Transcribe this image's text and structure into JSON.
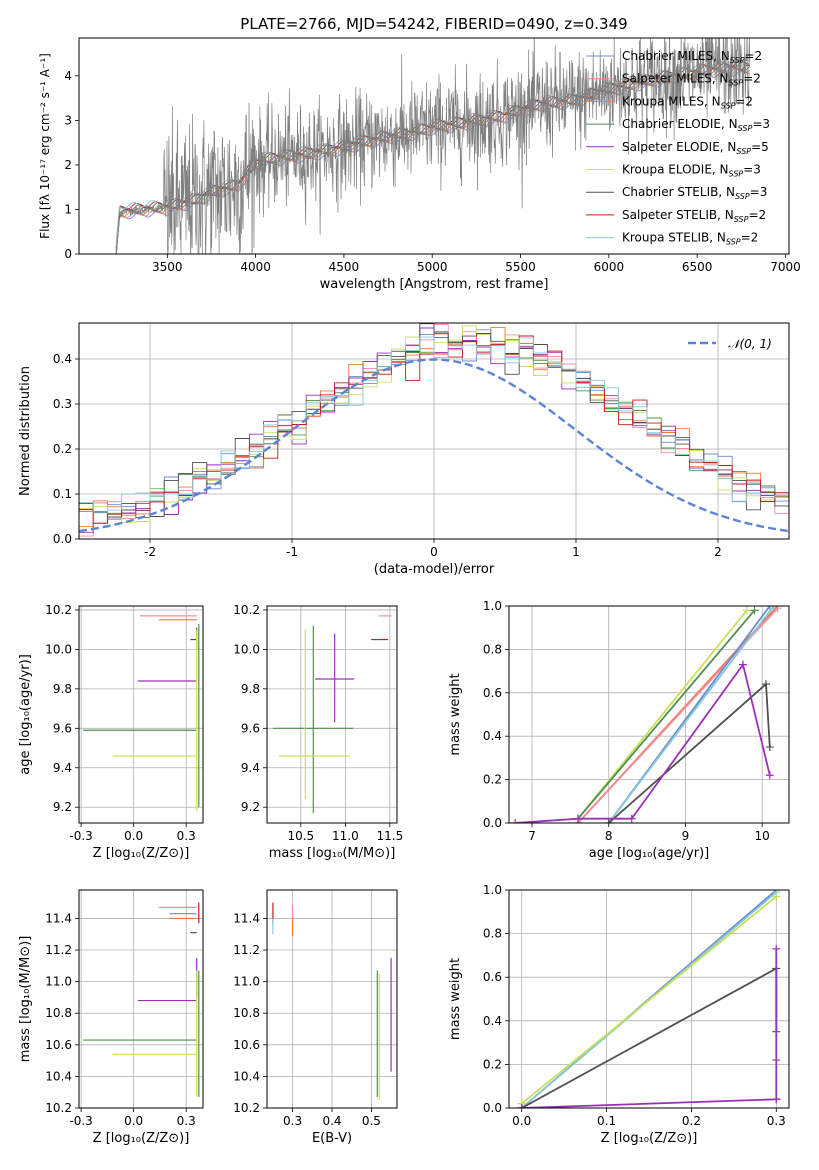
{
  "figure_title": "PLATE=2766, MJD=54242, FIBERID=0490, z=0.349",
  "colors": {
    "Chabrier MILES": "#6b8cd6",
    "Salpeter MILES": "#f08ca0",
    "Kroupa MILES": "#f07838",
    "Chabrier ELODIE": "#4f8f4f",
    "Salpeter ELODIE": "#9b30b8",
    "Kroupa ELODIE": "#c8e05a",
    "Chabrier STELIB": "#505050",
    "Salpeter STELIB": "#c81818",
    "Kroupa STELIB": "#86c8d8",
    "data": "#808080",
    "normal": "#5b85d4"
  },
  "legend_spectrum": [
    {
      "name": "Chabrier MILES",
      "nssp": "2"
    },
    {
      "name": "Salpeter MILES",
      "nssp": "2"
    },
    {
      "name": "Kroupa MILES",
      "nssp": "2"
    },
    {
      "name": "Chabrier ELODIE",
      "nssp": "3"
    },
    {
      "name": "Salpeter ELODIE",
      "nssp": "5"
    },
    {
      "name": "Kroupa ELODIE",
      "nssp": "3"
    },
    {
      "name": "Chabrier STELIB",
      "nssp": "3"
    },
    {
      "name": "Salpeter STELIB",
      "nssp": "2"
    },
    {
      "name": "Kroupa STELIB",
      "nssp": "2"
    }
  ],
  "chart_data": [
    {
      "id": "spectrum",
      "type": "line",
      "xlabel": "wavelength [Angstrom, rest frame]",
      "ylabel": "Flux [fλ 10⁻¹⁷ erg cm⁻² s⁻¹ A⁻¹]",
      "xlim": [
        3000,
        7020
      ],
      "ylim": [
        0,
        4.85
      ],
      "xticks": [
        3500,
        4000,
        4500,
        5000,
        5500,
        6000,
        6500,
        7000
      ],
      "yticks": [
        0,
        1,
        2,
        3,
        4
      ],
      "grid": false,
      "legend": "upper right",
      "data_start": 3210,
      "model_continuum": [
        [
          3210,
          0
        ],
        [
          3230,
          0.95
        ],
        [
          3500,
          1.05
        ],
        [
          3650,
          1.2
        ],
        [
          3760,
          1.4
        ],
        [
          3900,
          1.55
        ],
        [
          4000,
          2.05
        ],
        [
          4100,
          2.15
        ],
        [
          4300,
          2.25
        ],
        [
          4500,
          2.4
        ],
        [
          4700,
          2.6
        ],
        [
          4860,
          2.7
        ],
        [
          5000,
          2.85
        ],
        [
          5200,
          2.95
        ],
        [
          5400,
          3.1
        ],
        [
          5600,
          3.35
        ],
        [
          5800,
          3.45
        ],
        [
          6000,
          3.7
        ],
        [
          6300,
          3.95
        ],
        [
          6600,
          4.15
        ],
        [
          6800,
          4.2
        ]
      ]
    },
    {
      "id": "residuals",
      "type": "step",
      "xlabel": "(data-model)/error",
      "ylabel": "Normed distribution",
      "xlim": [
        -2.5,
        2.5
      ],
      "ylim": [
        0,
        0.48
      ],
      "xticks": [
        -2,
        -1,
        0,
        1,
        2
      ],
      "yticks": [
        0.0,
        0.1,
        0.2,
        0.3,
        0.4
      ],
      "grid": true,
      "legend": "upper right",
      "overlay": {
        "name": "𝒩(0, 1)",
        "mean": 0,
        "sigma": 1
      },
      "bin_width": 0.1
    },
    {
      "id": "z_age",
      "type": "errorbar",
      "xlabel": "Z [log₁₀(Z/Z⊙)]",
      "ylabel": "age  [log₁₀(age/yr)]",
      "xlim": [
        -0.26,
        0.33
      ],
      "ylim": [
        9.12,
        10.22
      ],
      "xticks": [
        -0.25,
        0.0,
        0.25
      ],
      "yticks": [
        9.2,
        9.4,
        9.6,
        9.8,
        10.0,
        10.2
      ],
      "grid": true,
      "points": [
        {
          "series": "Salpeter MILES",
          "x": 0.13,
          "y": 10.17,
          "xerr": [
            0.1,
            0.17
          ],
          "yerr": [
            0.0,
            0.0
          ]
        },
        {
          "series": "Kroupa MILES",
          "x": 0.22,
          "y": 10.15,
          "xerr": [
            0.1,
            0.08
          ],
          "yerr": [
            0.0,
            0.0
          ]
        },
        {
          "series": "Chabrier STELIB",
          "x": 0.3,
          "y": 10.05,
          "xerr": [
            0.03,
            0.0
          ],
          "yerr": [
            0.05,
            0.06
          ]
        },
        {
          "series": "Salpeter ELODIE",
          "x": 0.15,
          "y": 9.84,
          "xerr": [
            0.13,
            0.15
          ],
          "yerr": [
            0.0,
            0.0
          ]
        },
        {
          "series": "Chabrier ELODIE",
          "x": 0.03,
          "y": 9.59,
          "xerr": [
            0.27,
            0.27
          ],
          "yerr": [
            0.0,
            0.0
          ]
        },
        {
          "series": "Kroupa ELODIE",
          "x": 0.1,
          "y": 9.46,
          "xerr": [
            0.2,
            0.2
          ],
          "yerr": [
            0.0,
            0.0
          ]
        },
        {
          "series": "Kroupa ELODIE",
          "x": 0.3,
          "y": 9.6,
          "xerr": [
            0.0,
            0.0
          ],
          "yerr": [
            0.42,
            0.5
          ]
        },
        {
          "series": "Chabrier ELODIE",
          "x": 0.31,
          "y": 9.7,
          "xerr": [
            0.0,
            0.0
          ],
          "yerr": [
            0.5,
            0.43
          ]
        }
      ]
    },
    {
      "id": "mass_age",
      "type": "errorbar",
      "xlabel": "mass [log₁₀(M/M⊙)]",
      "ylabel": "",
      "xlim": [
        10.12,
        11.58
      ],
      "ylim": [
        9.12,
        10.22
      ],
      "xticks": [
        10.5,
        11.0,
        11.5
      ],
      "yticks": [
        9.2,
        9.4,
        9.6,
        9.8,
        10.0,
        10.2
      ],
      "grid": true,
      "points": [
        {
          "series": "Salpeter MILES",
          "x": 11.45,
          "y": 10.17,
          "xerr": [
            0.07,
            0.07
          ],
          "yerr": [
            0.0,
            0.0
          ]
        },
        {
          "series": "Salpeter STELIB",
          "x": 11.42,
          "y": 10.05,
          "xerr": [
            0.04,
            0.06
          ],
          "yerr": [
            0.0,
            0.0
          ]
        },
        {
          "series": "Chabrier STELIB",
          "x": 11.35,
          "y": 10.05,
          "xerr": [
            0.06,
            0.03
          ],
          "yerr": [
            0.0,
            0.0
          ]
        },
        {
          "series": "Salpeter ELODIE",
          "x": 10.88,
          "y": 9.85,
          "xerr": [
            0.22,
            0.22
          ],
          "yerr": [
            0.22,
            0.23
          ]
        },
        {
          "series": "Chabrier ELODIE",
          "x": 10.64,
          "y": 9.6,
          "xerr": [
            0.45,
            0.45
          ],
          "yerr": [
            0.43,
            0.52
          ]
        },
        {
          "series": "Kroupa ELODIE",
          "x": 10.55,
          "y": 9.46,
          "xerr": [
            0.3,
            0.5
          ],
          "yerr": [
            0.22,
            0.64
          ]
        }
      ]
    },
    {
      "id": "age_weight",
      "type": "line",
      "xlabel": "age  [log₁₀(age/yr)]",
      "ylabel": "mass weight",
      "xlim": [
        6.7,
        10.35
      ],
      "ylim": [
        0,
        1
      ],
      "xticks": [
        7,
        8,
        9,
        10
      ],
      "yticks": [
        0.0,
        0.2,
        0.4,
        0.6,
        0.8,
        1.0
      ],
      "grid": true,
      "series": [
        {
          "name": "Kroupa ELODIE",
          "x": [
            7.6,
            9.8
          ],
          "y": [
            0.02,
            0.98
          ]
        },
        {
          "name": "Chabrier ELODIE",
          "x": [
            7.6,
            9.9
          ],
          "y": [
            0.02,
            0.98
          ]
        },
        {
          "name": "Kroupa MILES",
          "x": [
            7.6,
            10.2
          ],
          "y": [
            0.0,
            1.0
          ]
        },
        {
          "name": "Salpeter MILES",
          "x": [
            7.6,
            10.2
          ],
          "y": [
            0.0,
            0.99
          ]
        },
        {
          "name": "Chabrier MILES",
          "x": [
            8.0,
            10.1
          ],
          "y": [
            0.0,
            1.0
          ]
        },
        {
          "name": "Kroupa STELIB",
          "x": [
            8.0,
            10.15
          ],
          "y": [
            0.0,
            1.0
          ]
        },
        {
          "name": "Chabrier STELIB",
          "x": [
            8.0,
            10.05,
            10.1
          ],
          "y": [
            0.0,
            0.64,
            0.35
          ]
        },
        {
          "name": "Salpeter ELODIE",
          "x": [
            6.78,
            7.6,
            8.3,
            9.75,
            10.1
          ],
          "y": [
            0.0,
            0.02,
            0.02,
            0.73,
            0.22
          ]
        }
      ]
    },
    {
      "id": "z_mass",
      "type": "errorbar",
      "xlabel": "Z [log₁₀(Z/Z⊙)]",
      "ylabel": "mass [log₁₀(M/M⊙)]",
      "xlim": [
        -0.26,
        0.33
      ],
      "ylim": [
        10.2,
        11.58
      ],
      "xticks": [
        -0.25,
        0.0,
        0.25
      ],
      "yticks": [
        10.2,
        10.4,
        10.6,
        10.8,
        11.0,
        11.2,
        11.4
      ],
      "grid": true,
      "points": [
        {
          "series": "Salpeter MILES",
          "x": 0.22,
          "y": 11.47,
          "xerr": [
            0.1,
            0.08
          ],
          "yerr": [
            0.0,
            0.0
          ]
        },
        {
          "series": "Chabrier MILES",
          "x": 0.24,
          "y": 11.43,
          "xerr": [
            0.07,
            0.06
          ],
          "yerr": [
            0.0,
            0.0
          ]
        },
        {
          "series": "Kroupa MILES",
          "x": 0.24,
          "y": 11.4,
          "xerr": [
            0.07,
            0.06
          ],
          "yerr": [
            0.0,
            0.0
          ]
        },
        {
          "series": "Chabrier STELIB",
          "x": 0.3,
          "y": 11.31,
          "xerr": [
            0.03,
            0.0
          ],
          "yerr": [
            0.0,
            0.0
          ]
        },
        {
          "series": "Salpeter STELIB",
          "x": 0.31,
          "y": 11.42,
          "xerr": [
            0.0,
            0.0
          ],
          "yerr": [
            0.05,
            0.08
          ]
        },
        {
          "series": "Salpeter ELODIE",
          "x": 0.15,
          "y": 10.88,
          "xerr": [
            0.13,
            0.15
          ],
          "yerr": [
            0.0,
            0.0
          ]
        },
        {
          "series": "Salpeter ELODIE",
          "x": 0.3,
          "y": 10.9,
          "xerr": [
            0.0,
            0.0
          ],
          "yerr": [
            0.0,
            0.25
          ]
        },
        {
          "series": "Chabrier ELODIE",
          "x": 0.03,
          "y": 10.63,
          "xerr": [
            0.27,
            0.27
          ],
          "yerr": [
            0.0,
            0.0
          ]
        },
        {
          "series": "Kroupa ELODIE",
          "x": 0.1,
          "y": 10.54,
          "xerr": [
            0.2,
            0.2
          ],
          "yerr": [
            0.0,
            0.0
          ]
        },
        {
          "series": "Kroupa ELODIE",
          "x": 0.3,
          "y": 10.67,
          "xerr": [
            0.0,
            0.0
          ],
          "yerr": [
            0.4,
            0.4
          ]
        },
        {
          "series": "Chabrier ELODIE",
          "x": 0.31,
          "y": 10.67,
          "xerr": [
            0.0,
            0.0
          ],
          "yerr": [
            0.4,
            0.4
          ]
        }
      ]
    },
    {
      "id": "ebv_mass",
      "type": "errorbar",
      "xlabel": "E(B-V)",
      "ylabel": "",
      "xlim": [
        0.235,
        0.565
      ],
      "ylim": [
        10.2,
        11.58
      ],
      "xticks": [
        0.3,
        0.4,
        0.5
      ],
      "yticks": [
        10.2,
        10.4,
        10.6,
        10.8,
        11.0,
        11.2,
        11.4
      ],
      "grid": true,
      "points": [
        {
          "series": "Salpeter STELIB",
          "x": 0.25,
          "y": 11.42,
          "xerr": [
            0.0,
            0.0
          ],
          "yerr": [
            0.05,
            0.08
          ]
        },
        {
          "series": "Kroupa STELIB",
          "x": 0.25,
          "y": 11.35,
          "xerr": [
            0.0,
            0.0
          ],
          "yerr": [
            0.05,
            0.05
          ]
        },
        {
          "series": "Kroupa MILES",
          "x": 0.3,
          "y": 11.38,
          "xerr": [
            0.0,
            0.0
          ],
          "yerr": [
            0.09,
            0.03
          ]
        },
        {
          "series": "Salpeter MILES",
          "x": 0.3,
          "y": 11.43,
          "xerr": [
            0.0,
            0.0
          ],
          "yerr": [
            0.04,
            0.05
          ]
        },
        {
          "series": "Kroupa ELODIE",
          "x": 0.52,
          "y": 10.65,
          "xerr": [
            0.0,
            0.0
          ],
          "yerr": [
            0.4,
            0.4
          ]
        },
        {
          "series": "Chabrier ELODIE",
          "x": 0.515,
          "y": 10.67,
          "xerr": [
            0.0,
            0.0
          ],
          "yerr": [
            0.4,
            0.4
          ]
        },
        {
          "series": "Salpeter ELODIE",
          "x": 0.55,
          "y": 10.8,
          "xerr": [
            0.0,
            0.0
          ],
          "yerr": [
            0.37,
            0.35
          ]
        }
      ]
    },
    {
      "id": "z_weight",
      "type": "line",
      "xlabel": "Z [log₁₀(Z/Z⊙)]",
      "ylabel": "mass weight",
      "xlim": [
        -0.015,
        0.315
      ],
      "ylim": [
        0,
        1
      ],
      "xticks": [
        0.0,
        0.1,
        0.2,
        0.3
      ],
      "yticks": [
        0.0,
        0.2,
        0.4,
        0.6,
        0.8,
        1.0
      ],
      "grid": true,
      "series": [
        {
          "name": "Chabrier MILES",
          "x": [
            0.0,
            0.3
          ],
          "y": [
            0.0,
            1.0
          ]
        },
        {
          "name": "Kroupa STELIB",
          "x": [
            0.0,
            0.3
          ],
          "y": [
            0.0,
            0.99
          ]
        },
        {
          "name": "Kroupa ELODIE",
          "x": [
            0.0,
            0.3
          ],
          "y": [
            0.02,
            0.97
          ]
        },
        {
          "name": "Chabrier STELIB",
          "x": [
            0.0,
            0.3,
            0.3
          ],
          "y": [
            0.0,
            0.64,
            0.35
          ]
        },
        {
          "name": "Salpeter ELODIE",
          "x": [
            0.0,
            0.3,
            0.3,
            0.3,
            0.3
          ],
          "y": [
            0.0,
            0.04,
            0.22,
            0.73,
            0.04
          ]
        }
      ]
    }
  ]
}
